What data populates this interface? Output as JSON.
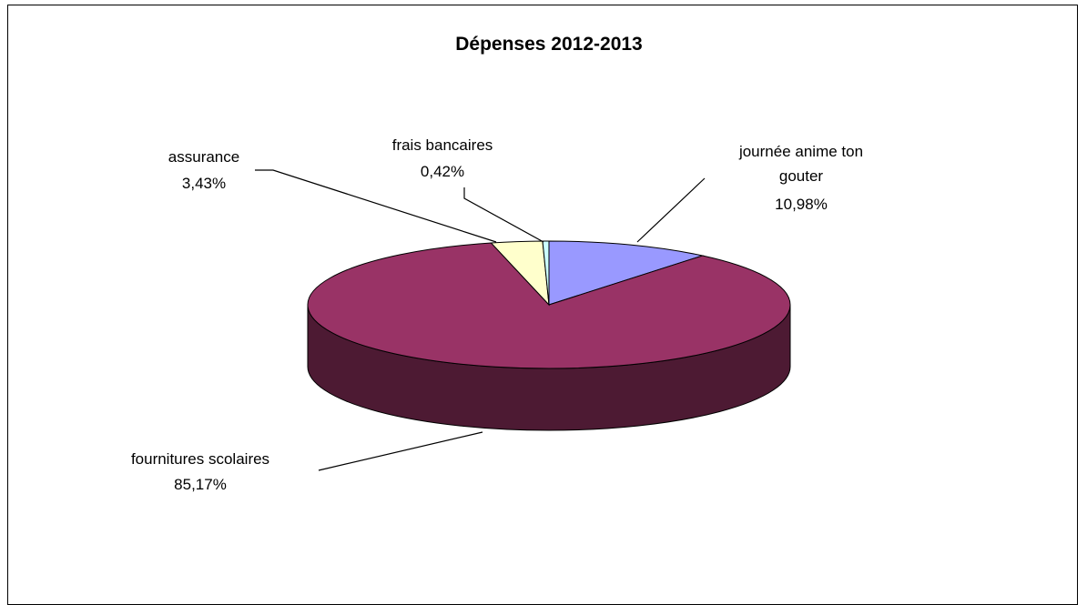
{
  "chart_data": {
    "type": "pie",
    "style": "3d",
    "title": "Dépenses 2012-2013",
    "slices": [
      {
        "label": "journée anime ton",
        "label2": "gouter",
        "value": 10.98,
        "pct": "10,98%",
        "color": "#9999ff"
      },
      {
        "label": "fournitures scolaires",
        "label2": "",
        "value": 85.17,
        "pct": "85,17%",
        "color": "#993366"
      },
      {
        "label": "assurance",
        "label2": "",
        "value": 3.43,
        "pct": "3,43%",
        "color": "#ffffcc"
      },
      {
        "label": "frais bancaires",
        "label2": "",
        "value": 0.42,
        "pct": "0,42%",
        "color": "#ccffff"
      }
    ],
    "legend": "none"
  }
}
